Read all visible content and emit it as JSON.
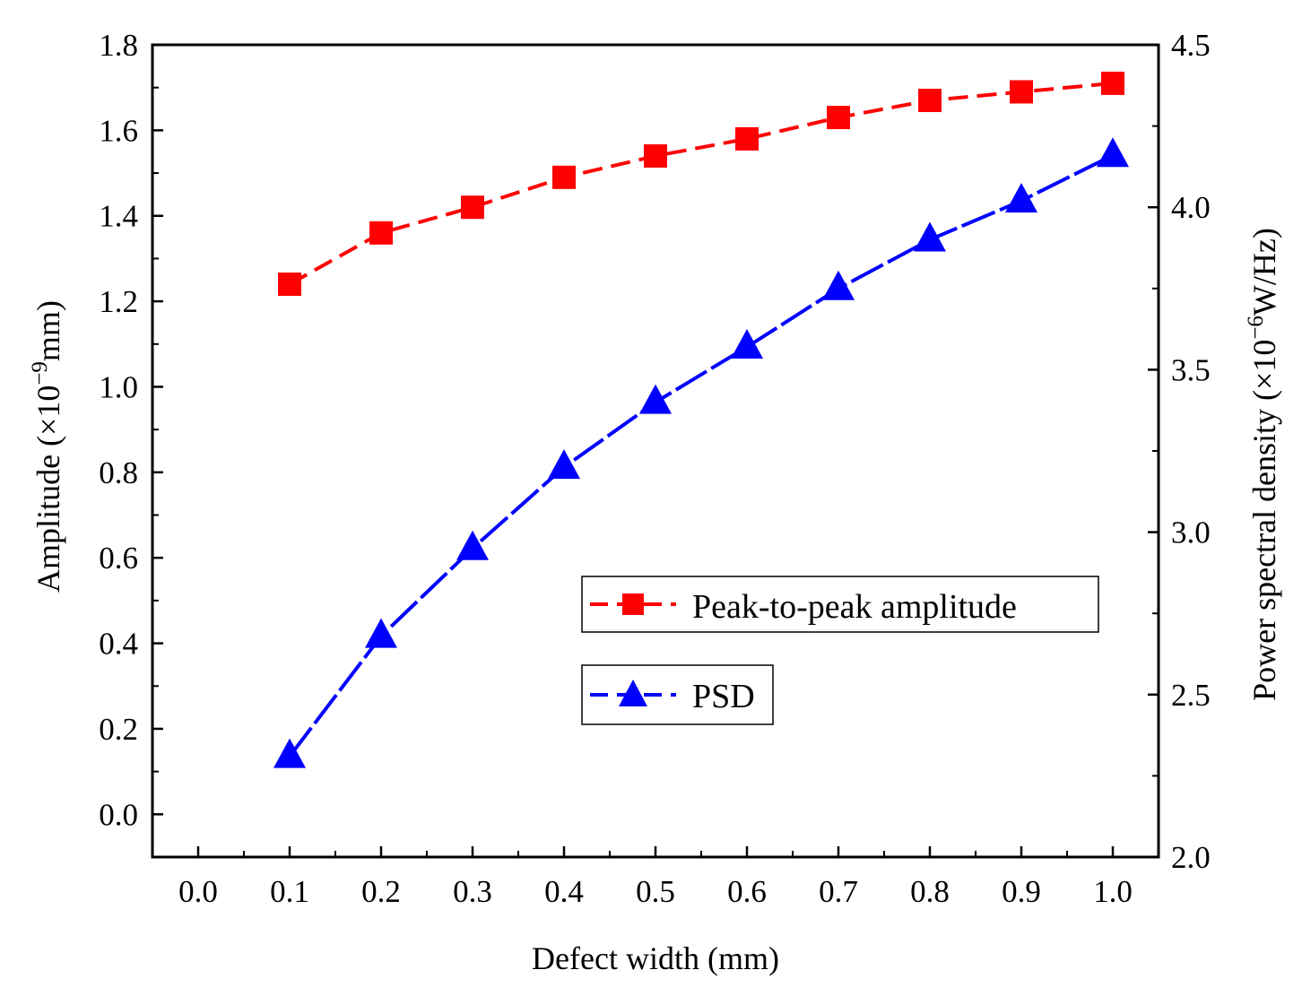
{
  "chart_data": {
    "type": "line",
    "title": "",
    "xlabel": "Defect width (mm)",
    "ylabel": "Amplitude (×10",
    "ylabel_exp": "−9",
    "ylabel_unit": "mm)",
    "y2label": "Power spectral density (×10",
    "y2label_exp": "−6",
    "y2label_unit": "W/Hz)",
    "xlim": [
      -0.05,
      1.05
    ],
    "ylim": [
      -0.1,
      1.8
    ],
    "y2lim": [
      2.0,
      4.5
    ],
    "xticks": [
      "0.0",
      "0.1",
      "0.2",
      "0.3",
      "0.4",
      "0.5",
      "0.6",
      "0.7",
      "0.8",
      "0.9",
      "1.0"
    ],
    "yticks": [
      "0.0",
      "0.2",
      "0.4",
      "0.6",
      "0.8",
      "1.0",
      "1.2",
      "1.4",
      "1.6",
      "1.8"
    ],
    "y2ticks": [
      "2.0",
      "2.5",
      "3.0",
      "3.5",
      "4.0",
      "4.5"
    ],
    "x": [
      0.1,
      0.2,
      0.3,
      0.4,
      0.5,
      0.6,
      0.7,
      0.8,
      0.9,
      1.0
    ],
    "series": [
      {
        "name": "Peak-to-peak amplitude",
        "axis": "left",
        "marker": "square",
        "color": "#ff0000",
        "values": [
          1.24,
          1.36,
          1.42,
          1.49,
          1.54,
          1.58,
          1.63,
          1.67,
          1.69,
          1.71
        ]
      },
      {
        "name": "PSD",
        "axis": "right",
        "marker": "triangle",
        "color": "#0000ff",
        "values": [
          2.31,
          2.68,
          2.95,
          3.2,
          3.4,
          3.57,
          3.75,
          3.9,
          4.02,
          4.16
        ]
      }
    ]
  }
}
